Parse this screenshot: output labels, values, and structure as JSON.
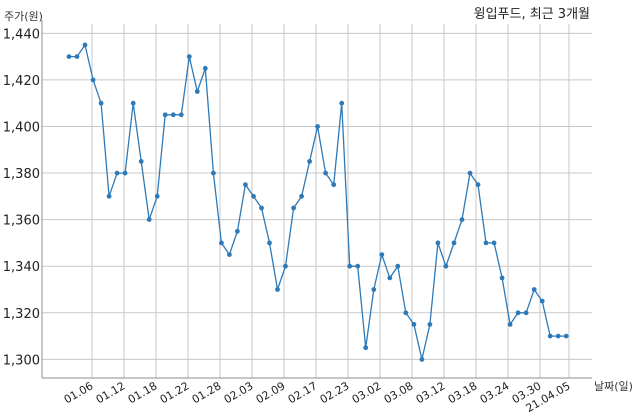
{
  "chart_data": {
    "type": "line",
    "title": "윙입푸드, 최근 3개월",
    "ylabel": "주가(원)",
    "xlabel": "날짜(일)",
    "ylim": [
      1292,
      1444
    ],
    "yticks": [
      1300,
      1320,
      1340,
      1360,
      1380,
      1400,
      1420,
      1440
    ],
    "ytick_labels": [
      "1,300",
      "1,320",
      "1,340",
      "1,360",
      "1,380",
      "1,400",
      "1,420",
      "1,440"
    ],
    "xtick_labels": [
      "01.06",
      "01.12",
      "01.18",
      "01.22",
      "01.28",
      "02.03",
      "02.09",
      "02.17",
      "02.23",
      "03.02",
      "03.08",
      "03.12",
      "03.18",
      "03.24",
      "03.30",
      "21.04.05"
    ],
    "grid": true,
    "line_color": "#2e7ab8",
    "series": [
      {
        "values": [
          1430,
          1430,
          1435,
          1420,
          1410,
          1370,
          1380,
          1380,
          1410,
          1385,
          1360,
          1370,
          1405,
          1405,
          1405,
          1430,
          1415,
          1425,
          1380,
          1350,
          1345,
          1355,
          1375,
          1370,
          1365,
          1350,
          1330,
          1340,
          1365,
          1370,
          1385,
          1400,
          1380,
          1375,
          1410,
          1340,
          1340,
          1305,
          1330,
          1345,
          1335,
          1340,
          1320,
          1315,
          1300,
          1315,
          1350,
          1340,
          1350,
          1360,
          1380,
          1375,
          1350,
          1350,
          1335,
          1315,
          1320,
          1320,
          1330,
          1325,
          1310,
          1310,
          1310
        ]
      }
    ]
  }
}
